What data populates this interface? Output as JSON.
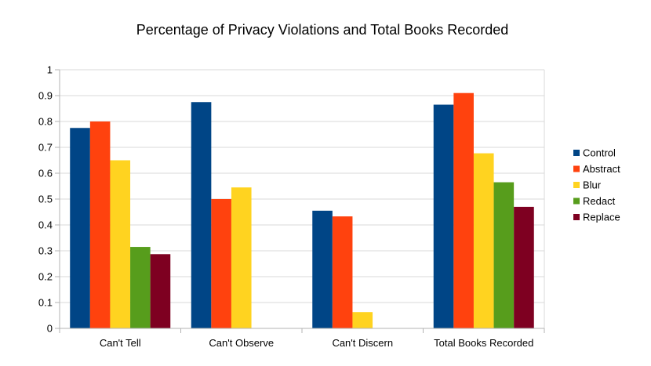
{
  "chart_data": {
    "type": "bar",
    "title": "Percentage of Privacy Violations and Total Books Recorded",
    "xlabel": "",
    "ylabel": "",
    "ylim": [
      0,
      1
    ],
    "yticks": [
      "0",
      "0.1",
      "0.2",
      "0.3",
      "0.4",
      "0.5",
      "0.6",
      "0.7",
      "0.8",
      "0.9",
      "1"
    ],
    "grid": true,
    "legend_position": "right",
    "categories": [
      "Can't Tell",
      "Can't Observe",
      "Can't Discern",
      "Total Books Recorded"
    ],
    "series": [
      {
        "name": "Control",
        "color": "#004586",
        "values": [
          0.775,
          0.875,
          0.455,
          0.865
        ]
      },
      {
        "name": "Abstract",
        "color": "#ff420e",
        "values": [
          0.8,
          0.5,
          0.433,
          0.91
        ]
      },
      {
        "name": "Blur",
        "color": "#ffd320",
        "values": [
          0.65,
          0.545,
          0.063,
          0.677
        ]
      },
      {
        "name": "Redact",
        "color": "#579d1c",
        "values": [
          0.315,
          null,
          null,
          0.565
        ]
      },
      {
        "name": "Replace",
        "color": "#7e0021",
        "values": [
          0.287,
          null,
          null,
          0.47
        ]
      }
    ]
  }
}
